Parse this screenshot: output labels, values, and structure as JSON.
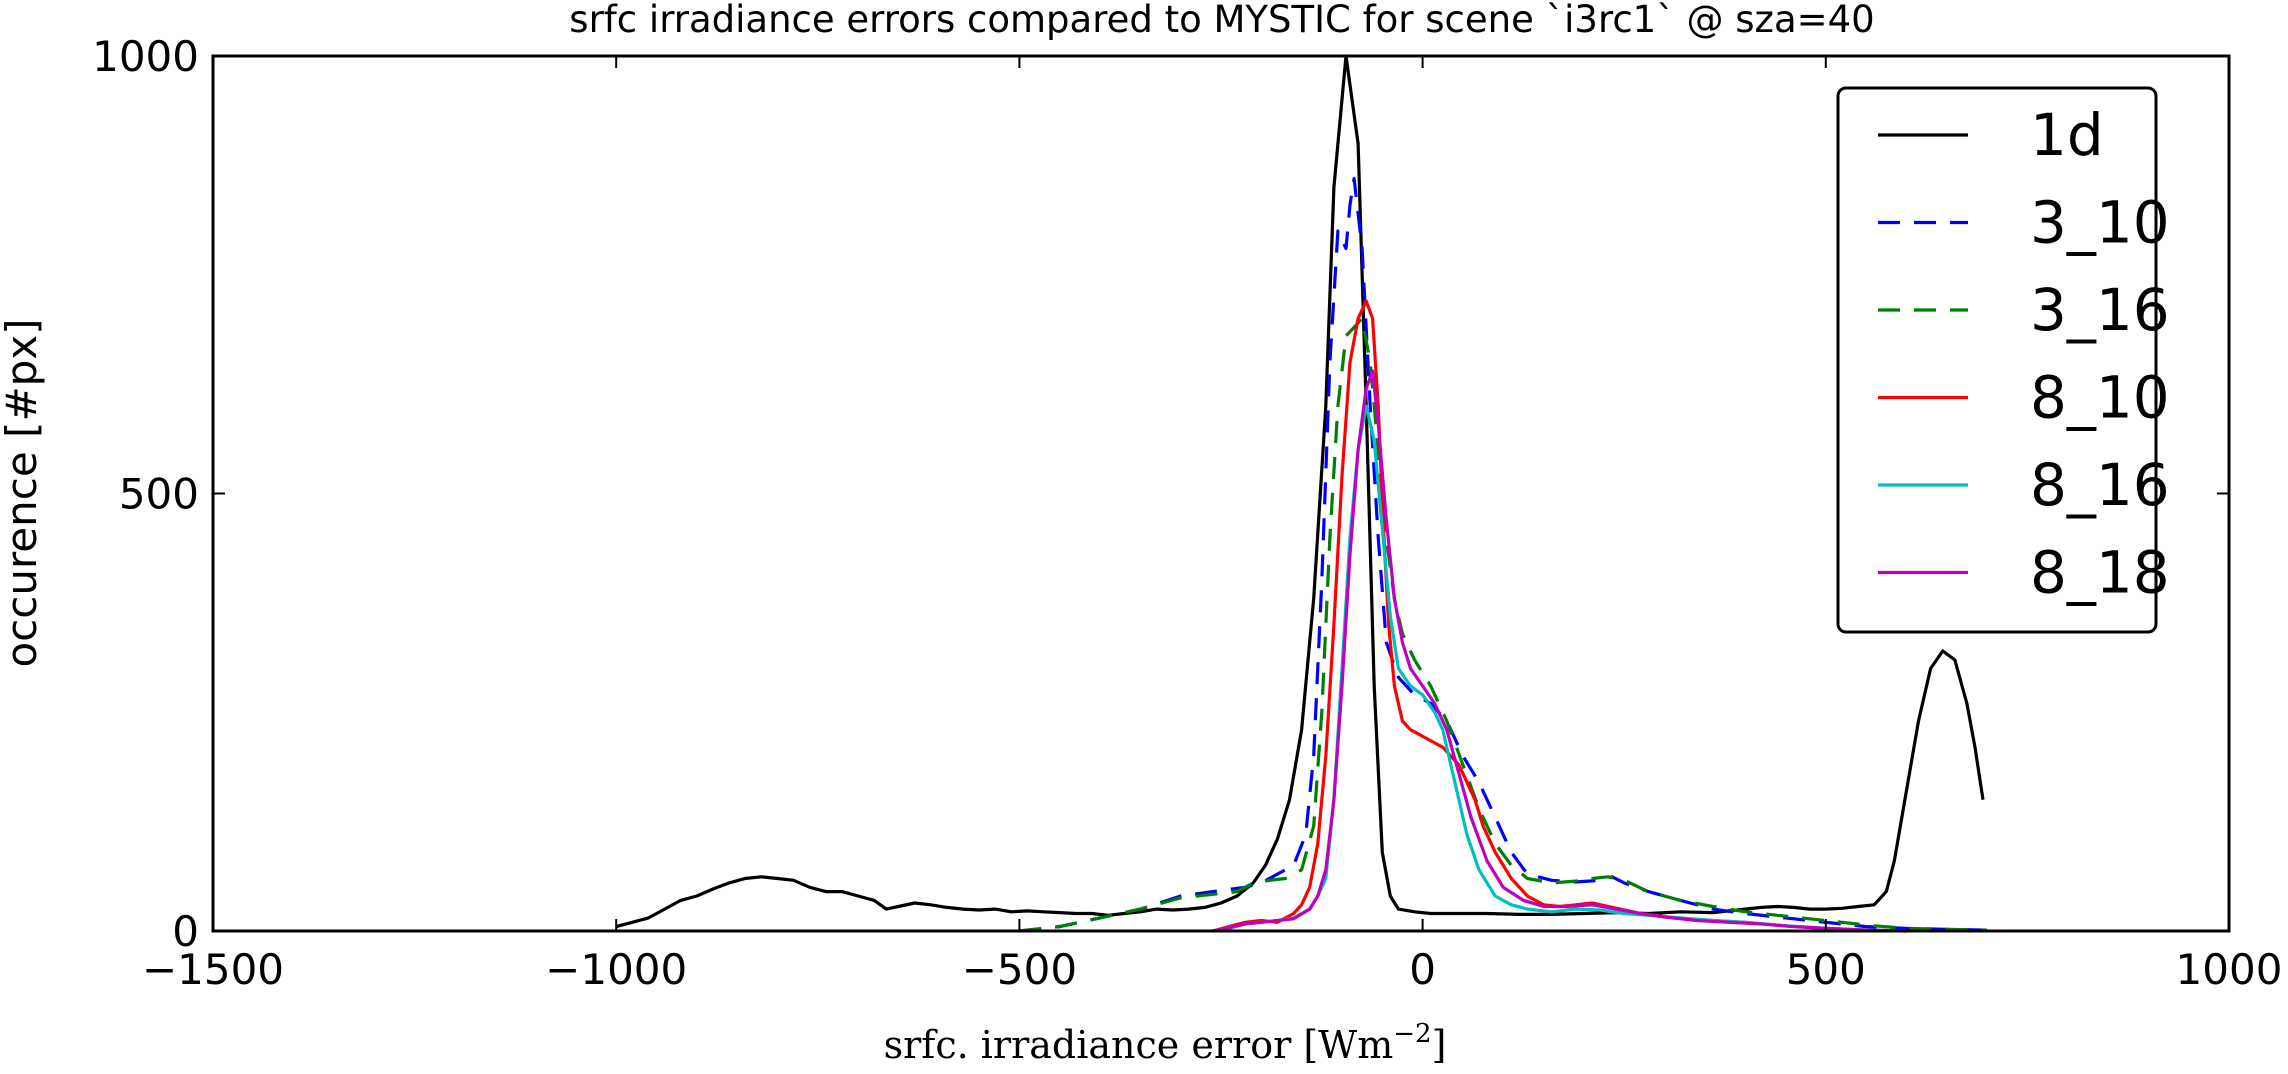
{
  "chart_data": {
    "type": "line",
    "title": "srfc irradiance errors compared to MYSTIC for scene `i3rc1` @ sza=40",
    "xlabel": "srfc. irradiance error [Wm",
    "xlabel_exponent": "−2",
    "xlabel_close": "]",
    "ylabel": "occurence [#px]",
    "xlim": [
      -1500,
      1000
    ],
    "ylim": [
      0,
      1000
    ],
    "xticks": [
      -1500,
      -1000,
      -500,
      0,
      500,
      1000
    ],
    "xtick_labels": [
      "−1500",
      "−1000",
      "−500",
      "0",
      "500",
      "1000"
    ],
    "yticks": [
      0,
      500,
      1000
    ],
    "ytick_labels": [
      "0",
      "500",
      "1000"
    ],
    "grid": false,
    "legend_position": "top-right",
    "series": [
      {
        "name": "1d",
        "color": "#000000",
        "dash": "solid",
        "points": [
          [
            -1000,
            5
          ],
          [
            -980,
            10
          ],
          [
            -960,
            15
          ],
          [
            -940,
            25
          ],
          [
            -920,
            35
          ],
          [
            -900,
            40
          ],
          [
            -880,
            48
          ],
          [
            -860,
            55
          ],
          [
            -840,
            60
          ],
          [
            -820,
            62
          ],
          [
            -800,
            60
          ],
          [
            -780,
            58
          ],
          [
            -760,
            50
          ],
          [
            -740,
            45
          ],
          [
            -720,
            45
          ],
          [
            -700,
            40
          ],
          [
            -680,
            35
          ],
          [
            -665,
            25
          ],
          [
            -650,
            28
          ],
          [
            -630,
            32
          ],
          [
            -610,
            30
          ],
          [
            -590,
            27
          ],
          [
            -570,
            25
          ],
          [
            -550,
            24
          ],
          [
            -530,
            25
          ],
          [
            -510,
            22
          ],
          [
            -490,
            23
          ],
          [
            -470,
            22
          ],
          [
            -450,
            21
          ],
          [
            -430,
            20
          ],
          [
            -410,
            20
          ],
          [
            -390,
            18
          ],
          [
            -370,
            20
          ],
          [
            -350,
            22
          ],
          [
            -330,
            25
          ],
          [
            -310,
            24
          ],
          [
            -290,
            25
          ],
          [
            -270,
            27
          ],
          [
            -250,
            32
          ],
          [
            -230,
            40
          ],
          [
            -210,
            55
          ],
          [
            -195,
            75
          ],
          [
            -180,
            105
          ],
          [
            -165,
            150
          ],
          [
            -150,
            230
          ],
          [
            -135,
            380
          ],
          [
            -120,
            600
          ],
          [
            -110,
            850
          ],
          [
            -95,
            1000
          ],
          [
            -80,
            900
          ],
          [
            -70,
            600
          ],
          [
            -60,
            280
          ],
          [
            -50,
            90
          ],
          [
            -40,
            40
          ],
          [
            -30,
            25
          ],
          [
            -10,
            22
          ],
          [
            10,
            20
          ],
          [
            40,
            20
          ],
          [
            80,
            20
          ],
          [
            120,
            19
          ],
          [
            160,
            19
          ],
          [
            200,
            20
          ],
          [
            240,
            21
          ],
          [
            280,
            20
          ],
          [
            320,
            22
          ],
          [
            360,
            21
          ],
          [
            380,
            23
          ],
          [
            400,
            25
          ],
          [
            420,
            27
          ],
          [
            440,
            28
          ],
          [
            460,
            27
          ],
          [
            480,
            25
          ],
          [
            500,
            25
          ],
          [
            520,
            26
          ],
          [
            540,
            28
          ],
          [
            560,
            30
          ],
          [
            575,
            45
          ],
          [
            585,
            80
          ],
          [
            600,
            160
          ],
          [
            615,
            240
          ],
          [
            630,
            300
          ],
          [
            645,
            320
          ],
          [
            660,
            310
          ],
          [
            675,
            260
          ],
          [
            685,
            210
          ],
          [
            695,
            150
          ]
        ]
      },
      {
        "name": "3_10",
        "color": "#0000ff",
        "dash": "dashed",
        "points": [
          [
            -500,
            0
          ],
          [
            -450,
            5
          ],
          [
            -400,
            15
          ],
          [
            -350,
            25
          ],
          [
            -300,
            40
          ],
          [
            -260,
            45
          ],
          [
            -220,
            50
          ],
          [
            -200,
            55
          ],
          [
            -180,
            65
          ],
          [
            -160,
            75
          ],
          [
            -145,
            110
          ],
          [
            -135,
            200
          ],
          [
            -125,
            400
          ],
          [
            -115,
            650
          ],
          [
            -105,
            800
          ],
          [
            -95,
            780
          ],
          [
            -90,
            830
          ],
          [
            -85,
            860
          ],
          [
            -75,
            780
          ],
          [
            -65,
            600
          ],
          [
            -55,
            450
          ],
          [
            -45,
            330
          ],
          [
            -30,
            290
          ],
          [
            -10,
            270
          ],
          [
            10,
            260
          ],
          [
            30,
            240
          ],
          [
            50,
            200
          ],
          [
            70,
            170
          ],
          [
            90,
            130
          ],
          [
            110,
            90
          ],
          [
            130,
            65
          ],
          [
            160,
            58
          ],
          [
            190,
            56
          ],
          [
            220,
            58
          ],
          [
            235,
            62
          ],
          [
            250,
            55
          ],
          [
            280,
            45
          ],
          [
            320,
            35
          ],
          [
            360,
            25
          ],
          [
            400,
            20
          ],
          [
            450,
            15
          ],
          [
            500,
            10
          ],
          [
            550,
            5
          ],
          [
            600,
            3
          ],
          [
            650,
            2
          ],
          [
            700,
            1
          ]
        ]
      },
      {
        "name": "3_16",
        "color": "#008000",
        "dash": "dashed",
        "points": [
          [
            -500,
            0
          ],
          [
            -450,
            5
          ],
          [
            -400,
            15
          ],
          [
            -350,
            25
          ],
          [
            -300,
            38
          ],
          [
            -260,
            42
          ],
          [
            -230,
            45
          ],
          [
            -210,
            55
          ],
          [
            -190,
            58
          ],
          [
            -170,
            60
          ],
          [
            -150,
            70
          ],
          [
            -135,
            120
          ],
          [
            -125,
            250
          ],
          [
            -115,
            450
          ],
          [
            -105,
            600
          ],
          [
            -95,
            680
          ],
          [
            -85,
            690
          ],
          [
            -75,
            700
          ],
          [
            -65,
            650
          ],
          [
            -55,
            550
          ],
          [
            -45,
            450
          ],
          [
            -35,
            380
          ],
          [
            -25,
            340
          ],
          [
            -10,
            310
          ],
          [
            10,
            280
          ],
          [
            30,
            240
          ],
          [
            50,
            190
          ],
          [
            70,
            140
          ],
          [
            90,
            100
          ],
          [
            110,
            75
          ],
          [
            130,
            60
          ],
          [
            160,
            55
          ],
          [
            190,
            57
          ],
          [
            210,
            60
          ],
          [
            230,
            62
          ],
          [
            250,
            58
          ],
          [
            280,
            45
          ],
          [
            320,
            35
          ],
          [
            360,
            28
          ],
          [
            400,
            22
          ],
          [
            440,
            18
          ],
          [
            480,
            14
          ],
          [
            520,
            10
          ],
          [
            560,
            6
          ],
          [
            600,
            3
          ],
          [
            650,
            2
          ],
          [
            700,
            1
          ]
        ]
      },
      {
        "name": "8_10",
        "color": "#ff0000",
        "dash": "solid",
        "points": [
          [
            -260,
            0
          ],
          [
            -240,
            5
          ],
          [
            -220,
            10
          ],
          [
            -200,
            12
          ],
          [
            -180,
            10
          ],
          [
            -170,
            15
          ],
          [
            -160,
            20
          ],
          [
            -150,
            30
          ],
          [
            -140,
            50
          ],
          [
            -130,
            100
          ],
          [
            -120,
            200
          ],
          [
            -110,
            350
          ],
          [
            -100,
            520
          ],
          [
            -90,
            650
          ],
          [
            -80,
            700
          ],
          [
            -70,
            720
          ],
          [
            -62,
            700
          ],
          [
            -55,
            600
          ],
          [
            -48,
            450
          ],
          [
            -42,
            350
          ],
          [
            -35,
            280
          ],
          [
            -25,
            240
          ],
          [
            -15,
            230
          ],
          [
            -5,
            225
          ],
          [
            5,
            220
          ],
          [
            15,
            215
          ],
          [
            25,
            210
          ],
          [
            35,
            200
          ],
          [
            45,
            190
          ],
          [
            55,
            170
          ],
          [
            65,
            150
          ],
          [
            75,
            120
          ],
          [
            90,
            90
          ],
          [
            110,
            60
          ],
          [
            130,
            40
          ],
          [
            150,
            30
          ],
          [
            170,
            28
          ],
          [
            190,
            30
          ],
          [
            210,
            32
          ],
          [
            230,
            28
          ],
          [
            250,
            24
          ],
          [
            270,
            20
          ],
          [
            290,
            18
          ],
          [
            310,
            15
          ],
          [
            330,
            14
          ],
          [
            360,
            12
          ],
          [
            400,
            10
          ],
          [
            450,
            6
          ],
          [
            500,
            3
          ],
          [
            550,
            1
          ],
          [
            600,
            0
          ]
        ]
      },
      {
        "name": "8_16",
        "color": "#00bfbf",
        "dash": "solid",
        "points": [
          [
            -260,
            0
          ],
          [
            -240,
            3
          ],
          [
            -220,
            8
          ],
          [
            -200,
            10
          ],
          [
            -180,
            12
          ],
          [
            -160,
            15
          ],
          [
            -140,
            25
          ],
          [
            -130,
            40
          ],
          [
            -120,
            60
          ],
          [
            -110,
            150
          ],
          [
            -100,
            300
          ],
          [
            -90,
            450
          ],
          [
            -80,
            550
          ],
          [
            -70,
            600
          ],
          [
            -60,
            560
          ],
          [
            -50,
            460
          ],
          [
            -40,
            360
          ],
          [
            -30,
            300
          ],
          [
            -15,
            280
          ],
          [
            0,
            270
          ],
          [
            15,
            250
          ],
          [
            25,
            230
          ],
          [
            35,
            190
          ],
          [
            45,
            150
          ],
          [
            55,
            110
          ],
          [
            70,
            70
          ],
          [
            90,
            40
          ],
          [
            110,
            30
          ],
          [
            130,
            25
          ],
          [
            160,
            22
          ],
          [
            190,
            25
          ],
          [
            220,
            24
          ],
          [
            250,
            20
          ],
          [
            280,
            18
          ],
          [
            320,
            15
          ],
          [
            360,
            12
          ],
          [
            400,
            10
          ],
          [
            450,
            6
          ],
          [
            500,
            3
          ],
          [
            550,
            1
          ],
          [
            600,
            0
          ]
        ]
      },
      {
        "name": "8_18",
        "color": "#bf00bf",
        "dash": "solid",
        "points": [
          [
            -260,
            0
          ],
          [
            -240,
            4
          ],
          [
            -220,
            8
          ],
          [
            -200,
            10
          ],
          [
            -180,
            12
          ],
          [
            -160,
            14
          ],
          [
            -140,
            25
          ],
          [
            -130,
            40
          ],
          [
            -120,
            70
          ],
          [
            -110,
            150
          ],
          [
            -100,
            280
          ],
          [
            -90,
            430
          ],
          [
            -80,
            550
          ],
          [
            -70,
            620
          ],
          [
            -62,
            640
          ],
          [
            -55,
            580
          ],
          [
            -45,
            470
          ],
          [
            -35,
            380
          ],
          [
            -25,
            330
          ],
          [
            -15,
            300
          ],
          [
            0,
            280
          ],
          [
            15,
            260
          ],
          [
            30,
            230
          ],
          [
            45,
            180
          ],
          [
            60,
            130
          ],
          [
            80,
            80
          ],
          [
            100,
            50
          ],
          [
            125,
            35
          ],
          [
            150,
            28
          ],
          [
            180,
            28
          ],
          [
            210,
            30
          ],
          [
            240,
            25
          ],
          [
            270,
            20
          ],
          [
            300,
            16
          ],
          [
            340,
            12
          ],
          [
            380,
            10
          ],
          [
            420,
            8
          ],
          [
            460,
            5
          ],
          [
            500,
            3
          ],
          [
            550,
            1
          ],
          [
            600,
            0
          ]
        ]
      }
    ]
  }
}
